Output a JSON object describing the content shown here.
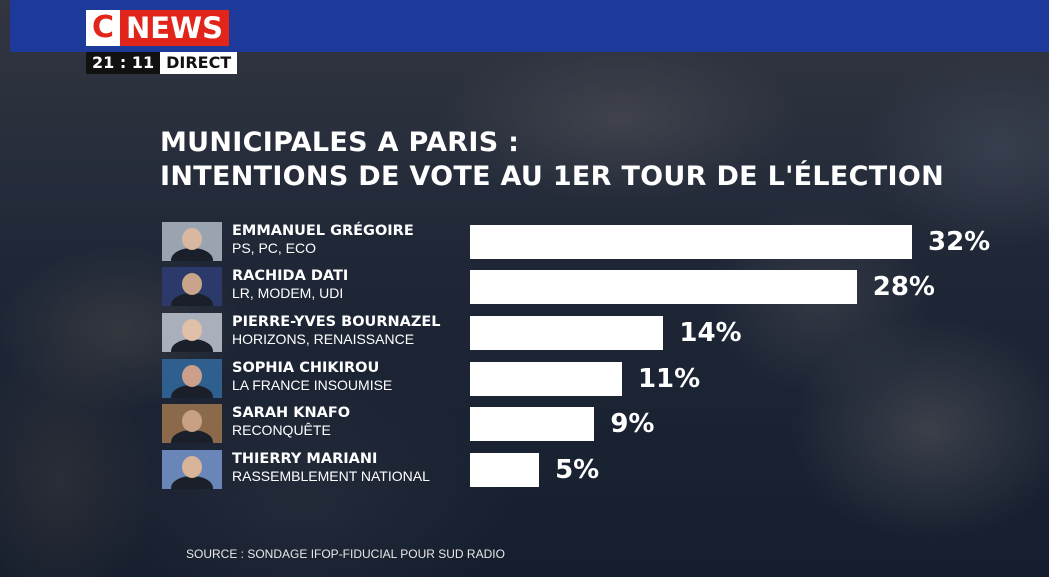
{
  "channel": {
    "logo_c": "C",
    "logo_news": "NEWS",
    "time": "21 : 11",
    "live_label": "DIRECT"
  },
  "title_lines": [
    "MUNICIPALES A PARIS :",
    "INTENTIONS DE VOTE AU 1ER TOUR DE L'ÉLECTION"
  ],
  "source": "SOURCE : SONDAGE IFOP-FIDUCIAL POUR SUD RADIO",
  "colors": {
    "channel_blue": "#1d3a9a",
    "logo_red": "#e1251b",
    "bar": "#ffffff",
    "text": "#ffffff"
  },
  "chart_data": {
    "type": "bar",
    "orientation": "horizontal",
    "title": "MUNICIPALES A PARIS : INTENTIONS DE VOTE AU 1ER TOUR DE L'ÉLECTION",
    "xlim": [
      0,
      32
    ],
    "grid": false,
    "categories": [
      "EMMANUEL GRÉGOIRE",
      "RACHIDA DATI",
      "PIERRE-YVES BOURNAZEL",
      "SOPHIA CHIKIROU",
      "SARAH KNAFO",
      "THIERRY MARIANI"
    ],
    "parties": [
      "PS, PC, ECO",
      "LR, MODEM, UDI",
      "HORIZONS, RENAISSANCE",
      "LA FRANCE INSOUMISE",
      "RECONQUÊTE",
      "RASSEMBLEMENT NATIONAL"
    ],
    "values": [
      32,
      28,
      14,
      11,
      9,
      5
    ],
    "labels": [
      "32%",
      "28%",
      "14%",
      "11%",
      "9%",
      "5%"
    ]
  }
}
